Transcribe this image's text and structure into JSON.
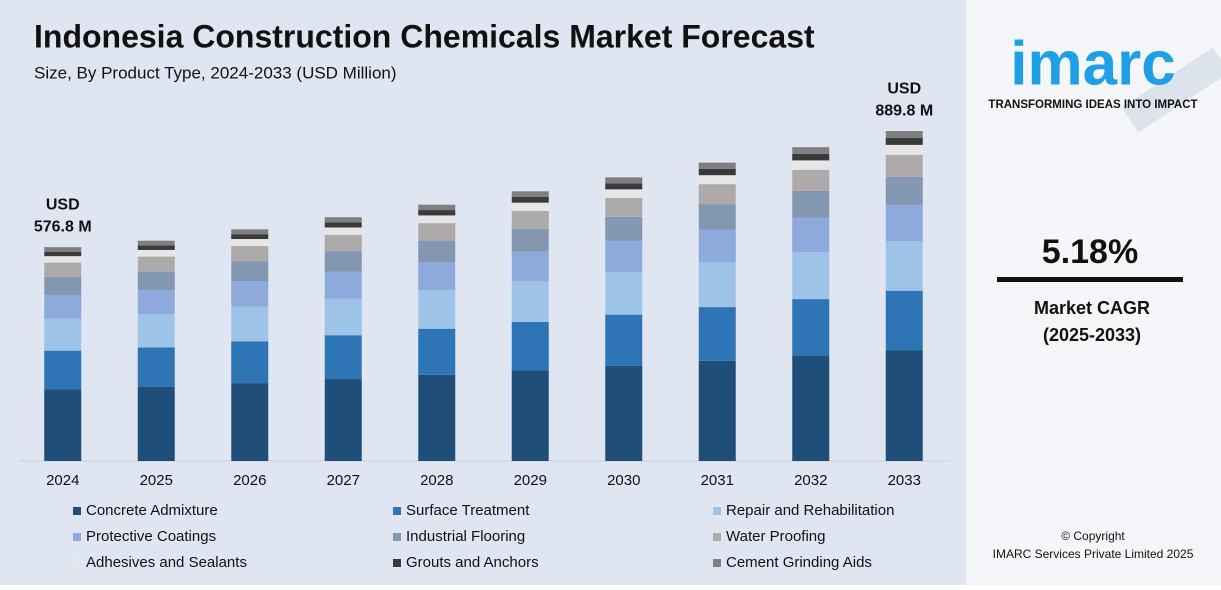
{
  "chart_data": {
    "type": "stacked-bar",
    "title": "Indonesia Construction Chemicals Market Forecast",
    "subtitle": "Size, By Product Type, 2024-2033 (USD Million)",
    "categories": [
      "2024",
      "2025",
      "2026",
      "2027",
      "2028",
      "2029",
      "2030",
      "2031",
      "2032",
      "2033"
    ],
    "series": [
      {
        "name": "Concrete Admixture",
        "color": "#1f4e79",
        "values": [
          193.8,
          199.6,
          210.0,
          220.9,
          232.3,
          244.3,
          257.0,
          270.3,
          284.3,
          299.0
        ]
      },
      {
        "name": "Surface Treatment",
        "color": "#2e75b6",
        "values": [
          103.8,
          106.9,
          112.5,
          118.3,
          124.4,
          130.9,
          137.7,
          144.8,
          152.3,
          160.2
        ]
      },
      {
        "name": "Repair and Rehabilitation",
        "color": "#9dc3e6",
        "values": [
          86.5,
          89.1,
          93.7,
          98.6,
          103.7,
          109.1,
          114.7,
          120.7,
          126.9,
          133.5
        ]
      },
      {
        "name": "Protective Coatings",
        "color": "#8ea9db",
        "values": [
          63.4,
          65.4,
          68.7,
          72.3,
          76.0,
          80.0,
          84.1,
          88.5,
          93.1,
          97.9
        ]
      },
      {
        "name": "Industrial Flooring",
        "color": "#8497b0",
        "values": [
          49.0,
          50.5,
          53.1,
          55.9,
          58.8,
          61.8,
          65.0,
          68.4,
          71.9,
          75.6
        ]
      },
      {
        "name": "Water Proofing",
        "color": "#aeaaaa",
        "values": [
          38.6,
          39.8,
          41.9,
          44.0,
          46.3,
          48.7,
          51.2,
          53.9,
          56.7,
          59.6
        ]
      },
      {
        "name": "Adhesives and Sealants",
        "color": "#e7e6e6",
        "values": [
          17.3,
          17.8,
          18.7,
          19.7,
          20.7,
          21.8,
          22.9,
          24.1,
          25.4,
          26.7
        ]
      },
      {
        "name": "Grouts and Anchors",
        "color": "#3a3a3a",
        "values": [
          12.1,
          12.5,
          13.1,
          13.8,
          14.5,
          15.3,
          16.1,
          16.9,
          17.8,
          18.7
        ]
      },
      {
        "name": "Cement Grinding Aids",
        "color": "#7f7f7f",
        "values": [
          12.1,
          12.5,
          13.1,
          13.8,
          14.5,
          15.3,
          16.1,
          16.9,
          17.8,
          18.7
        ]
      }
    ],
    "annotations": [
      {
        "category": "2024",
        "value": 576.8,
        "lines": [
          "USD",
          "576.8 M"
        ]
      },
      {
        "category": "2033",
        "value": 889.8,
        "lines": [
          "USD",
          "889.8 M"
        ]
      }
    ]
  },
  "brand": {
    "logo": "imarc",
    "tagline": "TRANSFORMING IDEAS INTO IMPACT",
    "cagr": "5.18%",
    "cagr_label": "Market CAGR",
    "cagr_period": "(2025-2033)",
    "copyright": "© Copyright",
    "company": "IMARC Services Private Limited 2025"
  }
}
